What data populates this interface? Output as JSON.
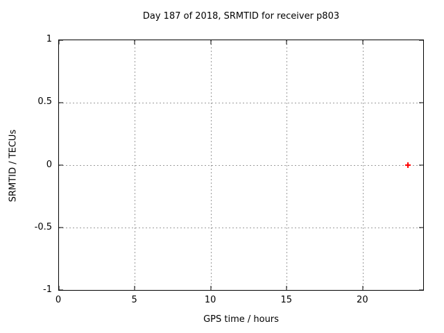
{
  "page": {
    "background": "#ffffff"
  },
  "chart_data": {
    "type": "scatter",
    "title": "Day 187 of 2018, SRMTID for receiver p803",
    "xlabel": "GPS time / hours",
    "ylabel": "SRMTID / TECUs",
    "xlim": [
      0,
      24
    ],
    "ylim": [
      -1,
      1
    ],
    "xticks": [
      0,
      5,
      10,
      15,
      20
    ],
    "xtick_labels": [
      "0",
      "5",
      "10",
      "15",
      "20"
    ],
    "yticks": [
      1,
      0.5,
      0,
      -0.5,
      -1
    ],
    "ytick_labels": [
      "1",
      "0.5",
      "0",
      "-0.5",
      "-1"
    ],
    "grid": true,
    "grid_style": "dotted",
    "legend": false,
    "colors": {
      "axis": "#000000",
      "grid": "#9a9a9a",
      "marker": "#ff0000"
    },
    "series": [
      {
        "name": "SRMTID",
        "marker": "plus",
        "color": "#ff0000",
        "points": [
          {
            "x": 23,
            "y": 0
          }
        ]
      }
    ]
  }
}
